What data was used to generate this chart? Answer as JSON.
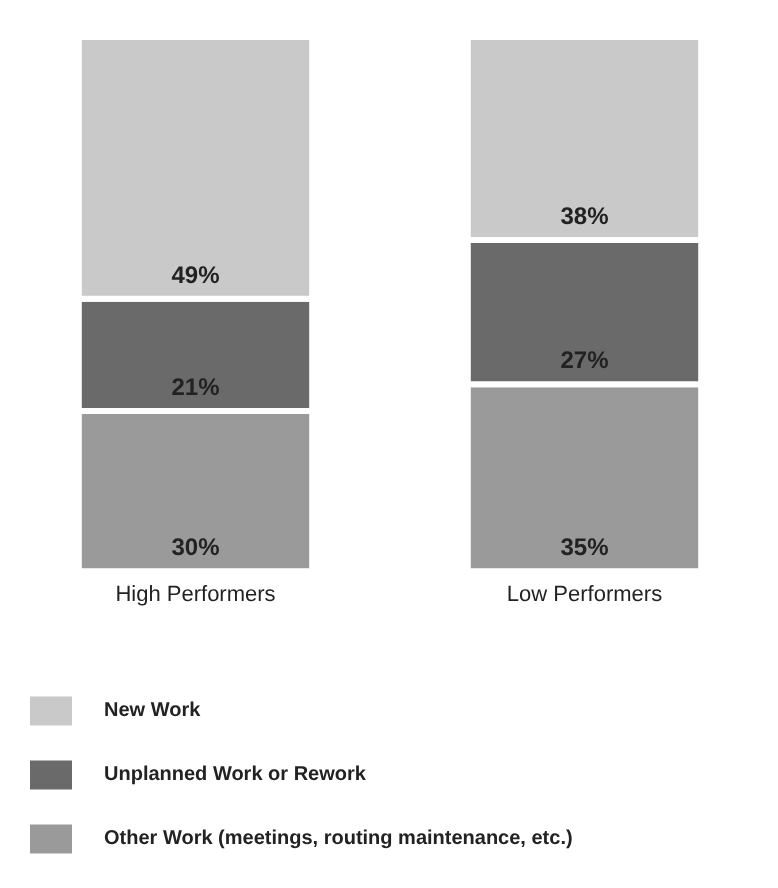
{
  "chart_data": {
    "type": "bar",
    "stacked": true,
    "legend": "bottom",
    "categories": [
      "High Performers",
      "Low Performers"
    ],
    "series": [
      {
        "name": "Other Work (meetings, routing maintenance, etc.)",
        "color": "#9a9a9a",
        "values": [
          30,
          35
        ],
        "value_labels": [
          "30%",
          "35%"
        ]
      },
      {
        "name": "Unplanned Work or Rework",
        "color": "#6a6a6a",
        "values": [
          21,
          27
        ],
        "value_labels": [
          "21%",
          "27%"
        ]
      },
      {
        "name": "New Work",
        "color": "#c9c9c9",
        "values": [
          49,
          38
        ],
        "value_labels": [
          "49%",
          "38%"
        ]
      }
    ]
  }
}
